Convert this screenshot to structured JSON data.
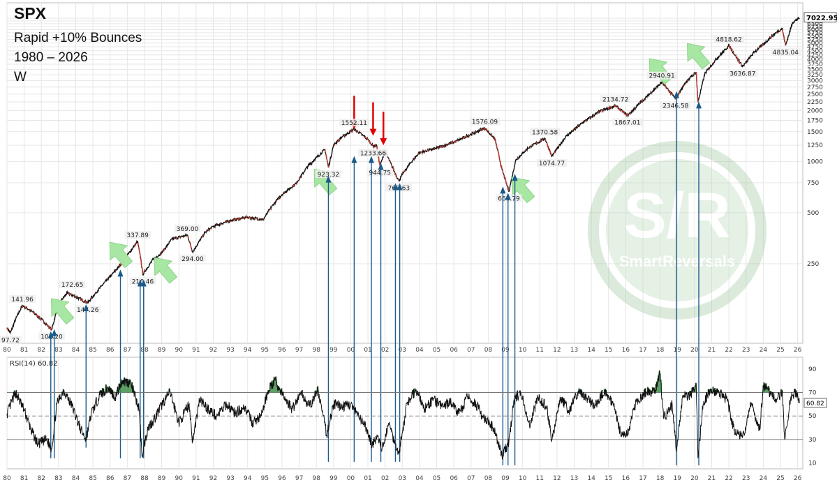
{
  "header": {
    "ticker": "SPX",
    "subtitle": "Rapid +10% Bounces",
    "range": "1980 – 2026",
    "timeframe": "W"
  },
  "watermark": {
    "logo": "S/R",
    "brand": "SmartReversals"
  },
  "colors": {
    "price_line": "#111111",
    "price_down": "#c0392b",
    "bounce_marker": "#1a5a8a",
    "arrow_up": "#a8e6a3",
    "arrow_down": "#e00000",
    "rsi_overbought_fill": "#3f8f4a",
    "grid": "#e6e6e6",
    "price_tag_bg": "#eeeeee"
  },
  "chart_data": [
    {
      "type": "line",
      "name": "price",
      "scale": "log",
      "ylim": [
        85,
        8000
      ],
      "xlim": [
        1980.0,
        2026.3
      ],
      "last_value_label": "7022.95",
      "grid": true,
      "x_tick_labels": [
        "80",
        "81",
        "82",
        "83",
        "84",
        "85",
        "86",
        "87",
        "88",
        "89",
        "90",
        "91",
        "92",
        "93",
        "94",
        "95",
        "96",
        "97",
        "98",
        "99",
        "00",
        "01",
        "02",
        "03",
        "04",
        "05",
        "06",
        "07",
        "08",
        "09",
        "10",
        "11",
        "12",
        "13",
        "14",
        "15",
        "16",
        "17",
        "18",
        "19",
        "20",
        "21",
        "22",
        "23",
        "24",
        "25",
        "26"
      ],
      "y_tick_labels": [
        "7000",
        "6750",
        "6500",
        "6250",
        "6000",
        "5750",
        "5500",
        "5250",
        "5000",
        "4750",
        "4500",
        "4250",
        "4000",
        "3750",
        "3500",
        "3250",
        "3000",
        "2750",
        "2500",
        "2250",
        "2000",
        "1750",
        "1500",
        "1250",
        "1000",
        "750",
        "500",
        "250"
      ],
      "y_tick_values": [
        7000,
        6750,
        6500,
        6250,
        6000,
        5750,
        5500,
        5250,
        5000,
        4750,
        4500,
        4250,
        4000,
        3750,
        3500,
        3250,
        3000,
        2750,
        2500,
        2250,
        2000,
        1750,
        1500,
        1250,
        1000,
        750,
        500,
        250
      ],
      "points": [
        [
          1980.0,
          105
        ],
        [
          1980.2,
          97.72
        ],
        [
          1980.5,
          118
        ],
        [
          1980.9,
          141.96
        ],
        [
          1981.5,
          130
        ],
        [
          1982.0,
          118
        ],
        [
          1982.6,
          102.2
        ],
        [
          1983.0,
          145
        ],
        [
          1983.5,
          168
        ],
        [
          1984.0,
          160
        ],
        [
          1984.5,
          150
        ],
        [
          1984.7,
          147.26
        ],
        [
          1985.5,
          185
        ],
        [
          1986.0,
          210
        ],
        [
          1986.5,
          240
        ],
        [
          1987.0,
          280
        ],
        [
          1987.6,
          337.89
        ],
        [
          1987.8,
          260
        ],
        [
          1987.9,
          216.46
        ],
        [
          1988.5,
          265
        ],
        [
          1989.0,
          290
        ],
        [
          1989.6,
          350
        ],
        [
          1990.5,
          369.0
        ],
        [
          1990.8,
          294.0
        ],
        [
          1991.5,
          380
        ],
        [
          1992.0,
          415
        ],
        [
          1993.0,
          450
        ],
        [
          1994.0,
          470
        ],
        [
          1994.9,
          455
        ],
        [
          1995.5,
          560
        ],
        [
          1996.0,
          640
        ],
        [
          1996.8,
          740
        ],
        [
          1997.5,
          940
        ],
        [
          1998.5,
          1180
        ],
        [
          1998.7,
          923.32
        ],
        [
          1999.0,
          1250
        ],
        [
          1999.5,
          1400
        ],
        [
          2000.2,
          1552.11
        ],
        [
          2000.5,
          1480
        ],
        [
          2001.0,
          1350
        ],
        [
          2001.3,
          1233.66
        ],
        [
          2001.5,
          1250
        ],
        [
          2001.7,
          944.75
        ],
        [
          2002.0,
          1150
        ],
        [
          2002.6,
          850
        ],
        [
          2002.8,
          768.63
        ],
        [
          2003.0,
          840
        ],
        [
          2003.5,
          990
        ],
        [
          2004.0,
          1130
        ],
        [
          2005.0,
          1200
        ],
        [
          2006.0,
          1300
        ],
        [
          2007.0,
          1450
        ],
        [
          2007.8,
          1576.09
        ],
        [
          2008.4,
          1350
        ],
        [
          2008.8,
          900
        ],
        [
          2009.2,
          666.79
        ],
        [
          2009.6,
          1020
        ],
        [
          2010.3,
          1200
        ],
        [
          2011.3,
          1370.58
        ],
        [
          2011.7,
          1074.77
        ],
        [
          2012.5,
          1400
        ],
        [
          2013.5,
          1700
        ],
        [
          2014.5,
          1980
        ],
        [
          2015.4,
          2134.72
        ],
        [
          2016.1,
          1867.01
        ],
        [
          2016.8,
          2200
        ],
        [
          2018.0,
          2870
        ],
        [
          2018.1,
          2940.91
        ],
        [
          2018.9,
          2346.58
        ],
        [
          2019.5,
          2950
        ],
        [
          2020.1,
          3380
        ],
        [
          2020.2,
          2237
        ],
        [
          2020.6,
          3300
        ],
        [
          2021.2,
          3950
        ],
        [
          2022.0,
          4818.62
        ],
        [
          2022.8,
          3636.87
        ],
        [
          2023.5,
          4450
        ],
        [
          2024.0,
          4900
        ],
        [
          2024.6,
          5600
        ],
        [
          2025.1,
          6100
        ],
        [
          2025.3,
          4835.04
        ],
        [
          2025.7,
          6600
        ],
        [
          2026.1,
          7022.95
        ]
      ]
    },
    {
      "type": "line",
      "name": "RSI(14)",
      "label": "RSI(14) 60.82",
      "current_value": 60.82,
      "ylim": [
        5,
        100
      ],
      "levels": [
        70,
        50,
        30
      ],
      "y_tick_labels": [
        "90",
        "70",
        "50",
        "30",
        "10"
      ],
      "y_tick_values": [
        90,
        70,
        50,
        30,
        10
      ],
      "points": [
        [
          1980.0,
          52
        ],
        [
          1980.5,
          70
        ],
        [
          1981.0,
          55
        ],
        [
          1981.4,
          38
        ],
        [
          1981.8,
          26
        ],
        [
          1982.3,
          30
        ],
        [
          1982.6,
          22
        ],
        [
          1982.9,
          60
        ],
        [
          1983.3,
          72
        ],
        [
          1983.8,
          58
        ],
        [
          1984.3,
          38
        ],
        [
          1984.6,
          30
        ],
        [
          1984.9,
          52
        ],
        [
          1985.4,
          68
        ],
        [
          1985.9,
          74
        ],
        [
          1986.3,
          66
        ],
        [
          1986.7,
          80
        ],
        [
          1987.2,
          78
        ],
        [
          1987.7,
          55
        ],
        [
          1987.85,
          16
        ],
        [
          1988.2,
          40
        ],
        [
          1988.6,
          48
        ],
        [
          1989.1,
          62
        ],
        [
          1989.5,
          70
        ],
        [
          1990.0,
          44
        ],
        [
          1990.6,
          60
        ],
        [
          1990.8,
          28
        ],
        [
          1991.2,
          64
        ],
        [
          1991.7,
          56
        ],
        [
          1992.2,
          50
        ],
        [
          1992.8,
          60
        ],
        [
          1993.3,
          52
        ],
        [
          1993.8,
          58
        ],
        [
          1994.3,
          44
        ],
        [
          1994.8,
          50
        ],
        [
          1995.2,
          72
        ],
        [
          1995.6,
          80
        ],
        [
          1996.1,
          66
        ],
        [
          1996.6,
          56
        ],
        [
          1997.1,
          70
        ],
        [
          1997.6,
          58
        ],
        [
          1998.1,
          72
        ],
        [
          1998.6,
          34
        ],
        [
          1999.0,
          60
        ],
        [
          1999.5,
          58
        ],
        [
          2000.0,
          60
        ],
        [
          2000.5,
          48
        ],
        [
          2000.9,
          40
        ],
        [
          2001.2,
          26
        ],
        [
          2001.6,
          32
        ],
        [
          2001.8,
          20
        ],
        [
          2002.2,
          44
        ],
        [
          2002.6,
          26
        ],
        [
          2002.8,
          18
        ],
        [
          2003.3,
          62
        ],
        [
          2003.8,
          72
        ],
        [
          2004.3,
          56
        ],
        [
          2004.8,
          64
        ],
        [
          2005.3,
          58
        ],
        [
          2005.8,
          62
        ],
        [
          2006.3,
          52
        ],
        [
          2006.8,
          66
        ],
        [
          2007.3,
          60
        ],
        [
          2007.7,
          48
        ],
        [
          2008.3,
          40
        ],
        [
          2008.8,
          16
        ],
        [
          2009.2,
          28
        ],
        [
          2009.5,
          64
        ],
        [
          2009.9,
          70
        ],
        [
          2010.4,
          42
        ],
        [
          2010.9,
          66
        ],
        [
          2011.4,
          58
        ],
        [
          2011.7,
          30
        ],
        [
          2012.2,
          66
        ],
        [
          2012.7,
          54
        ],
        [
          2013.2,
          70
        ],
        [
          2013.7,
          66
        ],
        [
          2014.2,
          58
        ],
        [
          2014.8,
          72
        ],
        [
          2015.3,
          58
        ],
        [
          2015.7,
          36
        ],
        [
          2016.1,
          34
        ],
        [
          2016.6,
          62
        ],
        [
          2017.2,
          70
        ],
        [
          2017.7,
          72
        ],
        [
          2018.0,
          86
        ],
        [
          2018.2,
          48
        ],
        [
          2018.7,
          60
        ],
        [
          2018.95,
          20
        ],
        [
          2019.3,
          66
        ],
        [
          2019.8,
          68
        ],
        [
          2020.1,
          76
        ],
        [
          2020.2,
          14
        ],
        [
          2020.5,
          60
        ],
        [
          2020.9,
          72
        ],
        [
          2021.4,
          70
        ],
        [
          2021.9,
          64
        ],
        [
          2022.3,
          38
        ],
        [
          2022.8,
          32
        ],
        [
          2023.3,
          60
        ],
        [
          2023.8,
          38
        ],
        [
          2024.0,
          76
        ],
        [
          2024.4,
          70
        ],
        [
          2024.8,
          64
        ],
        [
          2025.1,
          72
        ],
        [
          2025.25,
          30
        ],
        [
          2025.6,
          66
        ],
        [
          2025.9,
          70
        ],
        [
          2026.1,
          60.82
        ]
      ]
    }
  ],
  "price_labels": [
    {
      "text": "97.72",
      "x": 1980.2,
      "y": 97.72,
      "pos": "below"
    },
    {
      "text": "141.96",
      "x": 1980.9,
      "y": 141.96,
      "pos": "above"
    },
    {
      "text": "102.20",
      "x": 1982.6,
      "y": 102.2,
      "pos": "below"
    },
    {
      "text": "172.65",
      "x": 1983.8,
      "y": 172.65,
      "pos": "above"
    },
    {
      "text": "147.26",
      "x": 1984.7,
      "y": 147.26,
      "pos": "below"
    },
    {
      "text": "337.89",
      "x": 1987.6,
      "y": 337.89,
      "pos": "above"
    },
    {
      "text": "216.46",
      "x": 1987.9,
      "y": 216.46,
      "pos": "below"
    },
    {
      "text": "369.00",
      "x": 1990.5,
      "y": 369.0,
      "pos": "above"
    },
    {
      "text": "294.00",
      "x": 1990.8,
      "y": 294.0,
      "pos": "below"
    },
    {
      "text": "923.32",
      "x": 1998.7,
      "y": 923.32,
      "pos": "below"
    },
    {
      "text": "1552.11",
      "x": 2000.2,
      "y": 1552.11,
      "pos": "above"
    },
    {
      "text": "1233.66",
      "x": 2001.3,
      "y": 1233.66,
      "pos": "below"
    },
    {
      "text": "944.75",
      "x": 2001.7,
      "y": 944.75,
      "pos": "below"
    },
    {
      "text": "768.63",
      "x": 2002.8,
      "y": 768.63,
      "pos": "below"
    },
    {
      "text": "1576.09",
      "x": 2007.8,
      "y": 1576.09,
      "pos": "above"
    },
    {
      "text": "666.79",
      "x": 2009.2,
      "y": 666.79,
      "pos": "below"
    },
    {
      "text": "1370.58",
      "x": 2011.3,
      "y": 1370.58,
      "pos": "above"
    },
    {
      "text": "1074.77",
      "x": 2011.7,
      "y": 1074.77,
      "pos": "below"
    },
    {
      "text": "2134.72",
      "x": 2015.4,
      "y": 2134.72,
      "pos": "above"
    },
    {
      "text": "1867.01",
      "x": 2016.1,
      "y": 1867.01,
      "pos": "below"
    },
    {
      "text": "2940.91",
      "x": 2018.1,
      "y": 2940.91,
      "pos": "above"
    },
    {
      "text": "2346.58",
      "x": 2018.9,
      "y": 2346.58,
      "pos": "below"
    },
    {
      "text": "4818.62",
      "x": 2022.0,
      "y": 4818.62,
      "pos": "above"
    },
    {
      "text": "3636.87",
      "x": 2022.8,
      "y": 3636.87,
      "pos": "below"
    },
    {
      "text": "4835.04",
      "x": 2025.3,
      "y": 4835.04,
      "pos": "below"
    }
  ],
  "bounce_markers": [
    {
      "x": 1982.55,
      "y": 104,
      "rsi_bottom": 14
    },
    {
      "x": 1982.75,
      "y": 107,
      "rsi_bottom": 14
    },
    {
      "x": 1984.6,
      "y": 150,
      "rsi_bottom": 23
    },
    {
      "x": 1986.6,
      "y": 240,
      "rsi_bottom": 14
    },
    {
      "x": 1987.75,
      "y": 210,
      "rsi_bottom": 14
    },
    {
      "x": 1987.95,
      "y": 210,
      "rsi_bottom": 14
    },
    {
      "x": 1998.7,
      "y": 860,
      "rsi_bottom": 11
    },
    {
      "x": 2000.2,
      "y": 1120,
      "rsi_bottom": 11
    },
    {
      "x": 2001.2,
      "y": 1120,
      "rsi_bottom": 11
    },
    {
      "x": 2001.75,
      "y": 1020,
      "rsi_bottom": 11
    },
    {
      "x": 2002.6,
      "y": 775,
      "rsi_bottom": 11
    },
    {
      "x": 2002.85,
      "y": 775,
      "rsi_bottom": 11
    },
    {
      "x": 2008.85,
      "y": 740,
      "rsi_bottom": 8
    },
    {
      "x": 2009.15,
      "y": 680,
      "rsi_bottom": 8
    },
    {
      "x": 2009.55,
      "y": 880,
      "rsi_bottom": 8
    },
    {
      "x": 2018.95,
      "y": 2700,
      "rsi_bottom": 8
    },
    {
      "x": 2020.25,
      "y": 2350,
      "rsi_bottom": 8
    }
  ],
  "up_arrows": [
    {
      "x": 1983.1,
      "y": 135
    },
    {
      "x": 1986.5,
      "y": 290
    },
    {
      "x": 1989.1,
      "y": 235
    },
    {
      "x": 1998.4,
      "y": 780
    },
    {
      "x": 2009.9,
      "y": 700
    },
    {
      "x": 2017.9,
      "y": 3500
    },
    {
      "x": 2020.1,
      "y": 4300
    }
  ],
  "down_arrows": [
    {
      "x": 2000.2,
      "y": 1550
    },
    {
      "x": 2001.3,
      "y": 1420
    },
    {
      "x": 2001.9,
      "y": 1250
    }
  ]
}
